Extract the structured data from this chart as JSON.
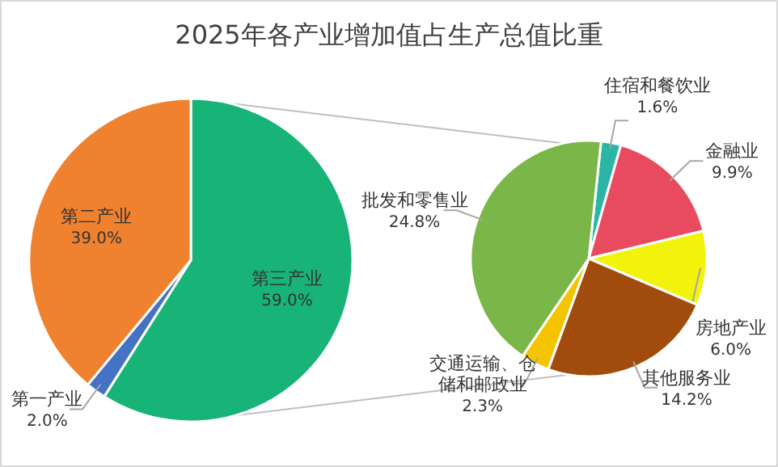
{
  "chart_data": [
    {
      "type": "pie",
      "title": "2025年各产业增加值占生产总值比重",
      "categories": [
        "第三产业",
        "第一产业",
        "第二产业"
      ],
      "values": [
        59.0,
        2.0,
        39.0
      ],
      "value_labels": [
        "59.0%",
        "2.0%",
        "39.0%"
      ],
      "colors": [
        "#17b377",
        "#4472c4",
        "#f0812f"
      ]
    },
    {
      "type": "pie",
      "categories": [
        "住宿和餐饮业",
        "金融业",
        "房地产业",
        "其他服务业",
        "交通运输、仓储和邮政业",
        "批发和零售业"
      ],
      "values": [
        1.6,
        9.9,
        6.0,
        14.2,
        2.3,
        24.8
      ],
      "value_labels": [
        "1.6%",
        "9.9%",
        "6.0%",
        "14.2%",
        "2.3%",
        "24.8%"
      ],
      "colors": [
        "#2ab5a5",
        "#e84a5f",
        "#f2f20a",
        "#a14b0c",
        "#f5c400",
        "#7ab648"
      ]
    }
  ]
}
